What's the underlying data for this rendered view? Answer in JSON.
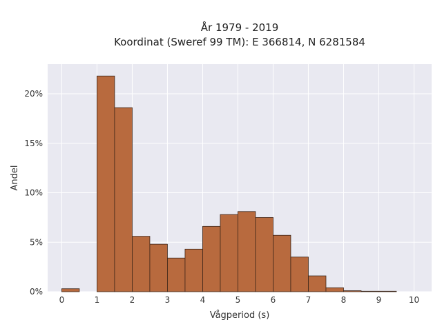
{
  "chart_data": {
    "type": "bar",
    "title_lines": [
      "År 1979 - 2019",
      "Koordinat (Sweref 99 TM): E 366814, N 6281584"
    ],
    "xlabel": "Vågperiod (s)",
    "ylabel": "Andel",
    "xlim": [
      -0.4,
      10.5
    ],
    "ylim": [
      0,
      23
    ],
    "x_ticks": [
      0,
      1,
      2,
      3,
      4,
      5,
      6,
      7,
      8,
      9,
      10
    ],
    "y_ticks": [
      0,
      5,
      10,
      15,
      20
    ],
    "y_tick_labels": [
      "0%",
      "5%",
      "10%",
      "15%",
      "20%"
    ],
    "bin_width": 0.5,
    "bins": [
      0,
      0.5,
      1,
      1.5,
      2,
      2.5,
      3,
      3.5,
      4,
      4.5,
      5,
      5.5,
      6,
      6.5,
      7,
      7.5,
      8,
      8.5,
      9
    ],
    "values": [
      0.3,
      0,
      21.8,
      18.6,
      5.6,
      4.8,
      3.4,
      4.3,
      6.6,
      7.8,
      8.1,
      7.5,
      5.7,
      3.5,
      1.6,
      0.4,
      0.1,
      0.05,
      0.05
    ],
    "grid": true,
    "colors": {
      "bar_fill": "#b86a3e",
      "bar_stroke": "#3a2418",
      "plot_background": "#e9e9f1",
      "grid": "#ffffff"
    }
  }
}
